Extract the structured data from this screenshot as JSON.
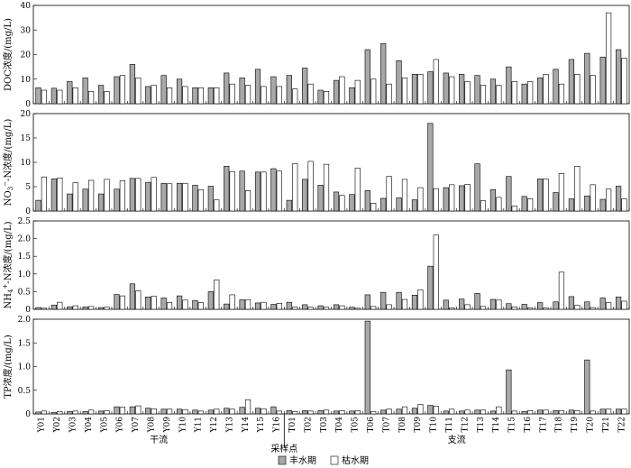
{
  "chart_data": {
    "type": "bar",
    "categories": [
      "Y01",
      "Y02",
      "Y03",
      "Y04",
      "Y05",
      "Y06",
      "Y07",
      "Y08",
      "Y09",
      "Y10",
      "Y11",
      "Y12",
      "Y13",
      "Y14",
      "Y15",
      "Y16",
      "T01",
      "T02",
      "T03",
      "T04",
      "T05",
      "T06",
      "T07",
      "T08",
      "T09",
      "T10",
      "T11",
      "T12",
      "T13",
      "T14",
      "T15",
      "T16",
      "T17",
      "T18",
      "T19",
      "T20",
      "T21",
      "T22"
    ],
    "xlabel": "采样点",
    "groups": [
      {
        "label": "干流",
        "from": "Y01",
        "to": "Y16"
      },
      {
        "label": "支流",
        "from": "T01",
        "to": "T22"
      }
    ],
    "legend": [
      {
        "name": "丰水期",
        "color": "#a8a8a8"
      },
      {
        "name": "枯水期",
        "color": "#ffffff"
      }
    ],
    "legend_position": "bottom-center",
    "panels": [
      {
        "ylabel": "DOC浓度/(mg/L)",
        "ylim": [
          0,
          40
        ],
        "yticks": [
          0,
          10,
          20,
          30,
          40
        ],
        "series": [
          {
            "name": "丰水期",
            "values": [
              6.5,
              6.3,
              9,
              10.5,
              7.5,
              11,
              16,
              7,
              11.5,
              10,
              6.5,
              6.5,
              12.5,
              10.5,
              14,
              11,
              11.5,
              14.5,
              5.5,
              9.5,
              6.5,
              22,
              24.5,
              17.5,
              12,
              13,
              12.5,
              12,
              11.5,
              10,
              15,
              8,
              10.5,
              14,
              18,
              20.5,
              19,
              22
            ]
          },
          {
            "name": "枯水期",
            "values": [
              5.5,
              5.5,
              6.5,
              5,
              5,
              11.5,
              10.5,
              7.5,
              6.5,
              7,
              6.5,
              6.5,
              8,
              7.5,
              7,
              7,
              6,
              8,
              5,
              11,
              9.5,
              10,
              8,
              10.5,
              12,
              18,
              11,
              9,
              7.5,
              7.5,
              9,
              9,
              12,
              8,
              12,
              11.5,
              37,
              18.5
            ]
          }
        ]
      },
      {
        "ylabel": "NO3−-N浓度/(mg/L)",
        "ylim": [
          0,
          20
        ],
        "yticks": [
          0,
          5,
          10,
          15,
          20
        ],
        "series": [
          {
            "name": "丰水期",
            "values": [
              2.2,
              6.6,
              3.5,
              4.5,
              3.5,
              4.5,
              6.7,
              5.9,
              5.7,
              5.7,
              5.3,
              5.1,
              9.2,
              8.2,
              8,
              8.7,
              2.2,
              6.5,
              5.3,
              3.9,
              3.4,
              4.2,
              2.6,
              2.7,
              2.3,
              18,
              4.8,
              5.2,
              9.7,
              4.4,
              7.1,
              3,
              6.6,
              3.8,
              2.5,
              3.1,
              2.4,
              5.1
            ]
          },
          {
            "name": "枯水期",
            "values": [
              7,
              6.8,
              5.8,
              6.3,
              6.5,
              6.2,
              6.7,
              6.9,
              5.6,
              5.7,
              4.4,
              2.3,
              8.1,
              4.2,
              8,
              8.2,
              9.7,
              10.2,
              9.6,
              3.2,
              8.8,
              1.6,
              7.1,
              6.5,
              4.8,
              4.6,
              5.4,
              5.5,
              2.1,
              2.8,
              1,
              2.5,
              6.6,
              7.7,
              9.2,
              5.4,
              4.5,
              2.5
            ]
          }
        ]
      },
      {
        "ylabel": "NH4+-N浓度/(mg/L)",
        "ylim": [
          0,
          2.5
        ],
        "yticks": [
          0,
          0.5,
          1.0,
          1.5,
          2.0,
          2.5
        ],
        "series": [
          {
            "name": "丰水期",
            "values": [
              0.05,
              0.12,
              0.07,
              0.07,
              0.05,
              0.42,
              0.72,
              0.35,
              0.32,
              0.38,
              0.25,
              0.5,
              0.15,
              0.27,
              0.18,
              0.14,
              0.2,
              0.13,
              0.1,
              0.13,
              0.06,
              0.41,
              0.48,
              0.48,
              0.4,
              1.22,
              0.26,
              0.29,
              0.45,
              0.28,
              0.16,
              0.14,
              0.19,
              0.21,
              0.36,
              0.21,
              0.32,
              0.35
            ]
          },
          {
            "name": "枯水期",
            "values": [
              0.03,
              0.2,
              0.1,
              0.08,
              0.06,
              0.38,
              0.52,
              0.37,
              0.19,
              0.26,
              0.19,
              0.83,
              0.41,
              0.27,
              0.2,
              0.17,
              0.06,
              0.06,
              0.06,
              0.1,
              0.03,
              0.08,
              0.13,
              0.28,
              0.55,
              2.1,
              0.04,
              0.13,
              0.08,
              0.26,
              0.07,
              0.04,
              0.04,
              1.05,
              0.11,
              0.05,
              0.19,
              0.23
            ]
          }
        ]
      },
      {
        "ylabel": "TP浓度/(mg/L)",
        "ylim": [
          0,
          2.0
        ],
        "yticks": [
          0,
          0.5,
          1.0,
          1.5,
          2.0
        ],
        "series": [
          {
            "name": "丰水期",
            "values": [
              0.04,
              0.03,
              0.05,
              0.05,
              0.06,
              0.15,
              0.15,
              0.12,
              0.1,
              0.1,
              0.08,
              0.08,
              0.12,
              0.14,
              0.12,
              0.15,
              0.07,
              0.07,
              0.07,
              0.06,
              0.06,
              1.96,
              0.08,
              0.1,
              0.12,
              0.18,
              0.06,
              0.06,
              0.08,
              0.06,
              0.93,
              0.05,
              0.08,
              0.07,
              0.08,
              1.14,
              0.1,
              0.1
            ]
          },
          {
            "name": "枯水期",
            "values": [
              0.06,
              0.05,
              0.06,
              0.08,
              0.07,
              0.14,
              0.17,
              0.11,
              0.1,
              0.09,
              0.06,
              0.1,
              0.1,
              0.3,
              0.11,
              0.06,
              0.05,
              0.06,
              0.08,
              0.07,
              0.07,
              0.05,
              0.1,
              0.15,
              0.2,
              0.16,
              0.1,
              0.08,
              0.08,
              0.15,
              0.06,
              0.07,
              0.08,
              0.07,
              0.07,
              0.06,
              0.1,
              0.1
            ]
          }
        ]
      }
    ]
  }
}
